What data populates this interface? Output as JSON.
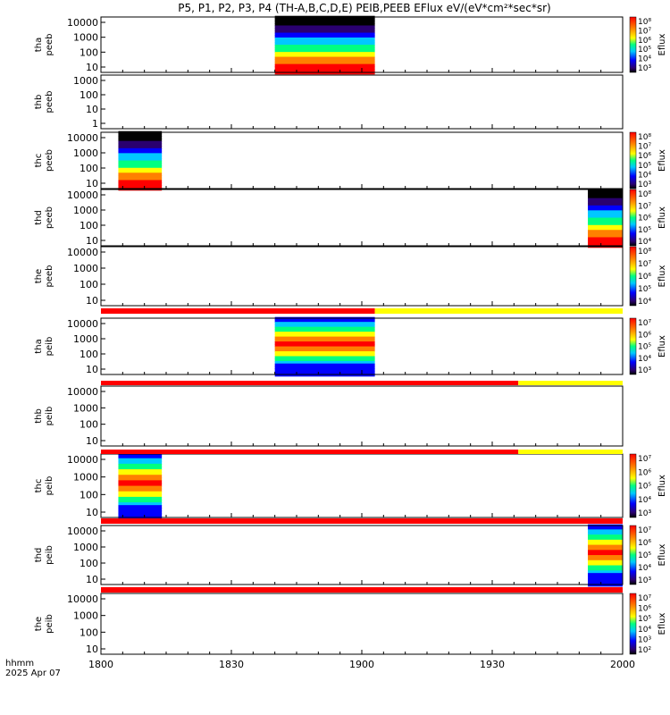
{
  "title": "P5, P1, P2, P3, P4 (TH-A,B,C,D,E) PEIB,PEEB EFlux eV/(eV*cm²*sec*sr)",
  "footer": {
    "line1": "hhmm",
    "line2": "2025 Apr 07"
  },
  "colors": {
    "red": "#ff0000",
    "yellow": "#ffff00",
    "black": "#000000"
  },
  "chart_data": {
    "type": "heatmap",
    "x_axis": {
      "range": [
        "1800",
        "2000"
      ],
      "tick_labels": [
        "1800",
        "1830",
        "1900",
        "1930",
        "2000"
      ]
    },
    "panels": [
      {
        "probe": "tha",
        "product": "peeb",
        "ylabel": [
          "tha",
          "peeb"
        ],
        "y_tick_labels": [
          "10000",
          "1000",
          "100",
          "10"
        ],
        "data_interval": [
          "1840",
          "1903"
        ],
        "zlabel": "Eflux",
        "colorbar_ticks": [
          "10⁸",
          "10⁷",
          "10⁶",
          "10⁵",
          "10⁴",
          "10³"
        ]
      },
      {
        "probe": "thb",
        "product": "peeb",
        "ylabel": [
          "thb",
          "peeb"
        ],
        "y_tick_labels": [
          "1000",
          "100",
          "10",
          "1"
        ],
        "data_interval": null,
        "zlabel": null,
        "colorbar_ticks": []
      },
      {
        "probe": "thc",
        "product": "peeb",
        "ylabel": [
          "thc",
          "peeb"
        ],
        "y_tick_labels": [
          "10000",
          "1000",
          "100",
          "10"
        ],
        "data_interval": [
          "1804",
          "1814"
        ],
        "zlabel": "Eflux",
        "colorbar_ticks": [
          "10⁸",
          "10⁷",
          "10⁶",
          "10⁵",
          "10⁴",
          "10³"
        ]
      },
      {
        "probe": "thd",
        "product": "peeb",
        "ylabel": [
          "thd",
          "peeb"
        ],
        "y_tick_labels": [
          "10000",
          "1000",
          "100",
          "10"
        ],
        "data_interval": [
          "1952",
          "2000"
        ],
        "zlabel": "Eflux",
        "colorbar_ticks": [
          "10⁸",
          "10⁷",
          "10⁶",
          "10⁵",
          "10⁴"
        ]
      },
      {
        "probe": "the",
        "product": "peeb",
        "ylabel": [
          "the",
          "peeb"
        ],
        "y_tick_labels": [
          "10000",
          "1000",
          "100",
          "10"
        ],
        "data_interval": null,
        "zlabel": "Eflux",
        "colorbar_ticks": [
          "10⁸",
          "10⁷",
          "10⁶",
          "10⁵",
          "10⁴"
        ]
      },
      {
        "probe": "tha",
        "product": "peib",
        "ylabel": [
          "tha",
          "peib"
        ],
        "y_tick_labels": [
          "10000",
          "1000",
          "100",
          "10"
        ],
        "data_interval": [
          "1840",
          "1903"
        ],
        "zlabel": "Eflux",
        "colorbar_ticks": [
          "10⁷",
          "10⁶",
          "10⁵",
          "10⁴",
          "10³"
        ]
      },
      {
        "probe": "thb",
        "product": "peib",
        "ylabel": [
          "thb",
          "peib"
        ],
        "y_tick_labels": [
          "10000",
          "1000",
          "100",
          "10"
        ],
        "data_interval": null,
        "zlabel": null,
        "colorbar_ticks": []
      },
      {
        "probe": "thc",
        "product": "peib",
        "ylabel": [
          "thc",
          "peib"
        ],
        "y_tick_labels": [
          "10000",
          "1000",
          "100",
          "10"
        ],
        "data_interval": [
          "1804",
          "1814"
        ],
        "zlabel": "Eflux",
        "colorbar_ticks": [
          "10⁷",
          "10⁶",
          "10⁵",
          "10⁴",
          "10³"
        ]
      },
      {
        "probe": "thd",
        "product": "peib",
        "ylabel": [
          "thd",
          "peib"
        ],
        "y_tick_labels": [
          "10000",
          "1000",
          "100",
          "10"
        ],
        "data_interval": [
          "1952",
          "2000"
        ],
        "zlabel": "Eflux",
        "colorbar_ticks": [
          "10⁷",
          "10⁶",
          "10⁵",
          "10⁴",
          "10³"
        ]
      },
      {
        "probe": "the",
        "product": "peib",
        "ylabel": [
          "the",
          "peib"
        ],
        "y_tick_labels": [
          "10000",
          "1000",
          "100",
          "10"
        ],
        "data_interval": null,
        "zlabel": "Eflux",
        "colorbar_ticks": [
          "10⁷",
          "10⁶",
          "10⁵",
          "10⁴",
          "10³",
          "10²"
        ]
      }
    ],
    "status_bars": [
      {
        "after_panel": 4,
        "red_until": "1903"
      },
      {
        "after_panel": 5,
        "red_until": "1936"
      },
      {
        "after_panel": 6,
        "red_until": "1936"
      },
      {
        "after_panel": 7,
        "red_until": "2000"
      },
      {
        "after_panel": 8,
        "red_until": "2000"
      }
    ]
  }
}
